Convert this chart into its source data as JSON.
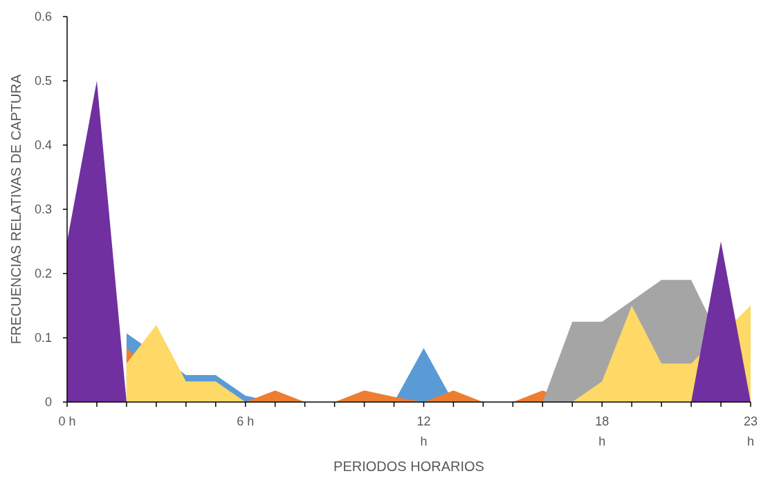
{
  "chart_data": {
    "type": "area",
    "xlabel": "PERIODOS HORARIOS",
    "ylabel": "FRECUENCIAS RELATIVAS DE CAPTURA",
    "categories": [
      "0 h",
      null,
      null,
      null,
      null,
      null,
      "6 h",
      null,
      null,
      null,
      null,
      null,
      "12 h",
      null,
      null,
      null,
      null,
      null,
      "18 h",
      null,
      null,
      null,
      null,
      "23 h"
    ],
    "series": [
      {
        "color": "#5b9bd5",
        "values": [
          null,
          null,
          0.107,
          null,
          0.042,
          0.042,
          0.01,
          0,
          0,
          0,
          0,
          0,
          0.084,
          0,
          0,
          0,
          0,
          0,
          0,
          0,
          0,
          0,
          0,
          0
        ]
      },
      {
        "color": "#ed7d31",
        "values": [
          null,
          null,
          0.084,
          null,
          0,
          0,
          0,
          0.018,
          0,
          0,
          0.018,
          0.008,
          0,
          0.018,
          0,
          0,
          0.018,
          0,
          0,
          0,
          0,
          0,
          0,
          0
        ]
      },
      {
        "color": "#a5a5a5",
        "values": [
          0,
          0,
          0,
          0,
          0,
          0,
          0,
          0,
          0,
          0,
          0,
          0,
          0,
          0,
          0,
          0,
          0,
          0.125,
          0.125,
          null,
          0.19,
          0.19,
          null,
          0
        ]
      },
      {
        "color": "#ffd966",
        "values": [
          null,
          null,
          0.06,
          0.12,
          0.032,
          0.032,
          0,
          0,
          0,
          0,
          0,
          0,
          0,
          0,
          0,
          0,
          0,
          0,
          0.032,
          0.15,
          0.06,
          0.06,
          null,
          0.15
        ]
      },
      {
        "color": "#7030a0",
        "values": [
          0.25,
          0.5,
          0,
          0,
          0,
          0,
          0,
          0,
          0,
          0,
          0,
          0,
          0,
          0,
          0,
          0,
          0,
          0,
          0,
          0,
          0,
          0,
          0.25,
          0
        ]
      }
    ],
    "ylim": [
      0,
      0.6
    ],
    "yticks": [
      0,
      0.1,
      0.2,
      0.3,
      0.4,
      0.5,
      0.6
    ],
    "grid": false
  }
}
